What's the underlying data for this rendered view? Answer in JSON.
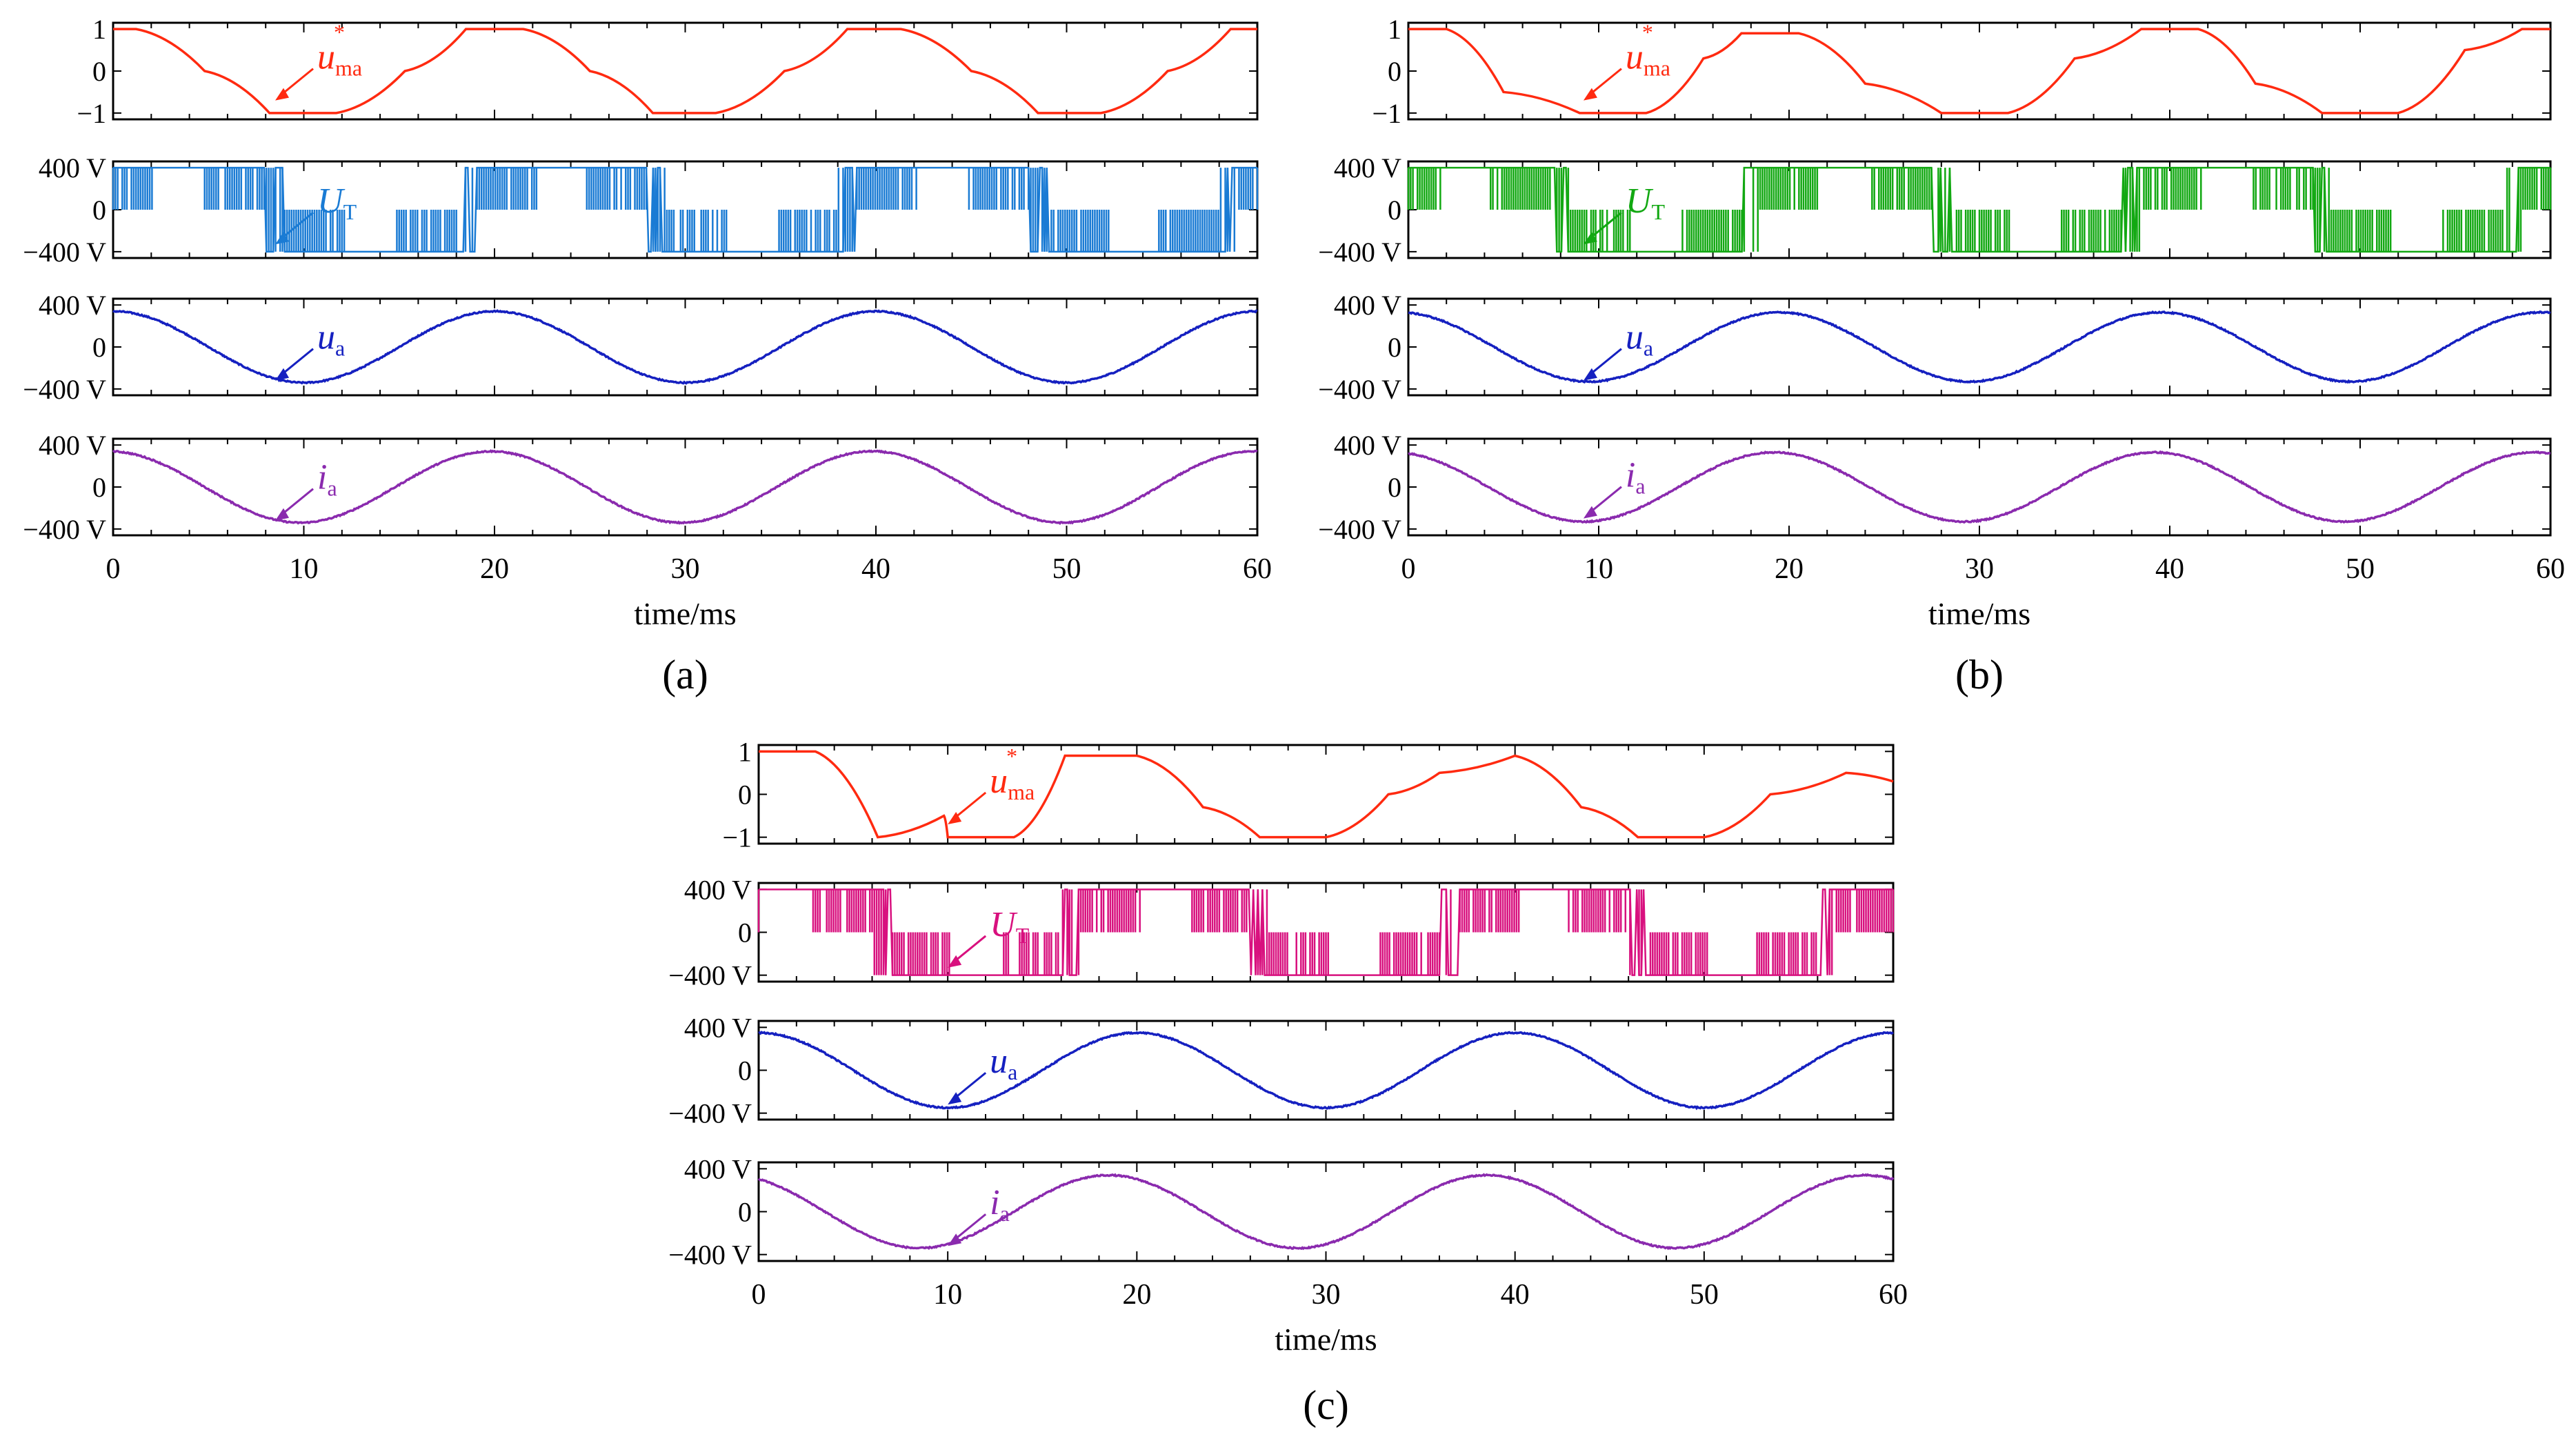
{
  "colors": {
    "uma": "#ff2a10",
    "UT_a": "#1a7bd4",
    "UT_b": "#12a812",
    "UT_c": "#d8107e",
    "ua": "#1520c0",
    "ia": "#8a2aae",
    "axis": "#000000"
  },
  "chart_data": [
    {
      "type": "line",
      "caption": "(a)",
      "xlabel": "time/ms",
      "xticks": [
        "0",
        "10",
        "20",
        "30",
        "40",
        "50",
        "60"
      ],
      "xlim": [
        0,
        60
      ],
      "rows": [
        {
          "id": "uma",
          "label": "u",
          "label_sub": "ma",
          "label_sup": "*",
          "color_key": "uma",
          "ylim": [
            -1.15,
            1.15
          ],
          "ytick_labels": [
            "1",
            "0",
            "−1"
          ],
          "segments": [
            [
              0,
              1.0
            ],
            [
              1.2,
              1.0
            ],
            [
              4.8,
              0.0
            ],
            [
              8.2,
              -1.0
            ],
            [
              11.7,
              -1.0
            ],
            [
              15.3,
              0.0
            ],
            [
              18.5,
              1.0
            ],
            [
              21.5,
              1.0
            ],
            [
              25.0,
              0.0
            ],
            [
              28.3,
              -1.0
            ],
            [
              31.6,
              -1.0
            ],
            [
              35.2,
              0.0
            ],
            [
              38.5,
              1.0
            ],
            [
              41.3,
              1.0
            ],
            [
              45.0,
              0.0
            ],
            [
              48.5,
              -1.0
            ],
            [
              51.8,
              -1.0
            ],
            [
              55.3,
              0.0
            ],
            [
              58.6,
              1.0
            ],
            [
              60,
              1.0
            ]
          ],
          "annotation": {
            "x": 8.5,
            "y": -0.7
          }
        },
        {
          "id": "UT",
          "label": "U",
          "label_sub": "T",
          "color_key": "UT_a",
          "kind": "pwm",
          "ylim": [
            -460,
            460
          ],
          "ytick_labels": [
            "400 V",
            "0",
            "−400 V"
          ],
          "phase_ms": 1.5,
          "annotation": {
            "x": 8.5,
            "y": -330
          }
        },
        {
          "id": "ua",
          "label": "u",
          "label_sub": "a",
          "color_key": "ua",
          "ylim": [
            -460,
            460
          ],
          "ytick_labels": [
            "400 V",
            "0",
            "−400 V"
          ],
          "amplitude": 340,
          "period_ms": 20,
          "phase_ms": 0.0,
          "annotation": {
            "x": 8.5,
            "y": -320
          }
        },
        {
          "id": "ia",
          "label": "i",
          "label_sub": "a",
          "color_key": "ia",
          "ylim": [
            -460,
            460
          ],
          "ytick_labels": [
            "400 V",
            "0",
            "−400 V"
          ],
          "amplitude": 340,
          "period_ms": 20,
          "phase_ms": 0.2,
          "annotation": {
            "x": 8.5,
            "y": -320
          }
        }
      ]
    },
    {
      "type": "line",
      "caption": "(b)",
      "xlabel": "time/ms",
      "xticks": [
        "0",
        "10",
        "20",
        "30",
        "40",
        "50",
        "60"
      ],
      "xlim": [
        0,
        60
      ],
      "rows": [
        {
          "id": "uma",
          "label": "u",
          "label_sub": "ma",
          "label_sup": "*",
          "color_key": "uma",
          "ylim": [
            -1.15,
            1.15
          ],
          "ytick_labels": [
            "1",
            "0",
            "−1"
          ],
          "segments": [
            [
              0,
              1.0
            ],
            [
              2.0,
              1.0
            ],
            [
              5.0,
              -0.5
            ],
            [
              9.0,
              -1.0
            ],
            [
              12.5,
              -1.0
            ],
            [
              15.5,
              0.3
            ],
            [
              17.5,
              0.9
            ],
            [
              20.5,
              0.9
            ],
            [
              24.0,
              -0.3
            ],
            [
              28.0,
              -1.0
            ],
            [
              31.5,
              -1.0
            ],
            [
              35.0,
              0.3
            ],
            [
              38.5,
              1.0
            ],
            [
              41.5,
              1.0
            ],
            [
              44.5,
              -0.3
            ],
            [
              48.0,
              -1.0
            ],
            [
              52.0,
              -1.0
            ],
            [
              55.5,
              0.5
            ],
            [
              58.5,
              1.0
            ],
            [
              60,
              1.0
            ]
          ],
          "annotation": {
            "x": 9.2,
            "y": -0.7
          }
        },
        {
          "id": "UT",
          "label": "U",
          "label_sub": "T",
          "color_key": "UT_b",
          "kind": "pwm",
          "ylim": [
            -460,
            460
          ],
          "ytick_labels": [
            "400 V",
            "0",
            "−400 V"
          ],
          "phase_ms": 2.0,
          "annotation": {
            "x": 9.2,
            "y": -330
          }
        },
        {
          "id": "ua",
          "label": "u",
          "label_sub": "a",
          "color_key": "ua",
          "ylim": [
            -460,
            460
          ],
          "ytick_labels": [
            "400 V",
            "0",
            "−400 V"
          ],
          "amplitude": 330,
          "period_ms": 20,
          "phase_ms": 0.5,
          "annotation": {
            "x": 9.2,
            "y": -320
          }
        },
        {
          "id": "ia",
          "label": "i",
          "label_sub": "a",
          "color_key": "ia",
          "ylim": [
            -460,
            460
          ],
          "ytick_labels": [
            "400 V",
            "0",
            "−400 V"
          ],
          "amplitude": 330,
          "period_ms": 20,
          "phase_ms": 0.8,
          "annotation": {
            "x": 9.2,
            "y": -300
          }
        }
      ]
    },
    {
      "type": "line",
      "caption": "(c)",
      "xlabel": "time/ms",
      "xticks": [
        "0",
        "10",
        "20",
        "30",
        "40",
        "50",
        "60"
      ],
      "xlim": [
        0,
        60
      ],
      "rows": [
        {
          "id": "uma",
          "label": "u",
          "label_sub": "ma",
          "label_sup": "*",
          "color_key": "uma",
          "ylim": [
            -1.15,
            1.15
          ],
          "ytick_labels": [
            "1",
            "0",
            "−1"
          ],
          "segments": [
            [
              0,
              1.0
            ],
            [
              3.0,
              1.0
            ],
            [
              6.3,
              -1.0
            ],
            [
              9.8,
              -0.5
            ],
            [
              10.0,
              -1.0
            ],
            [
              13.5,
              -1.0
            ],
            [
              16.2,
              0.9
            ],
            [
              20.0,
              0.9
            ],
            [
              23.5,
              -0.3
            ],
            [
              26.5,
              -1.0
            ],
            [
              30.0,
              -1.0
            ],
            [
              33.3,
              0.0
            ],
            [
              36.0,
              0.5
            ],
            [
              40.0,
              0.9
            ],
            [
              43.5,
              -0.3
            ],
            [
              46.5,
              -1.0
            ],
            [
              50.0,
              -1.0
            ],
            [
              53.5,
              0.0
            ],
            [
              57.5,
              0.5
            ],
            [
              60,
              0.3
            ]
          ],
          "annotation": {
            "x": 10.0,
            "y": -0.7
          }
        },
        {
          "id": "UT",
          "label": "U",
          "label_sub": "T",
          "color_key": "UT_c",
          "kind": "pwm",
          "ylim": [
            -460,
            460
          ],
          "ytick_labels": [
            "400 V",
            "0",
            "−400 V"
          ],
          "phase_ms": 3.5,
          "annotation": {
            "x": 10.0,
            "y": -330
          }
        },
        {
          "id": "ua",
          "label": "u",
          "label_sub": "a",
          "color_key": "ua",
          "ylim": [
            -460,
            460
          ],
          "ytick_labels": [
            "400 V",
            "0",
            "−400 V"
          ],
          "amplitude": 350,
          "period_ms": 20,
          "phase_ms": 0.0,
          "annotation": {
            "x": 10.0,
            "y": -320
          }
        },
        {
          "id": "ia",
          "label": "i",
          "label_sub": "a",
          "color_key": "ia",
          "ylim": [
            -460,
            460
          ],
          "ytick_labels": [
            "400 V",
            "0",
            "−400 V"
          ],
          "amplitude": 340,
          "period_ms": 20,
          "phase_ms": 1.5,
          "annotation": {
            "x": 10.0,
            "y": -320
          }
        }
      ]
    }
  ]
}
